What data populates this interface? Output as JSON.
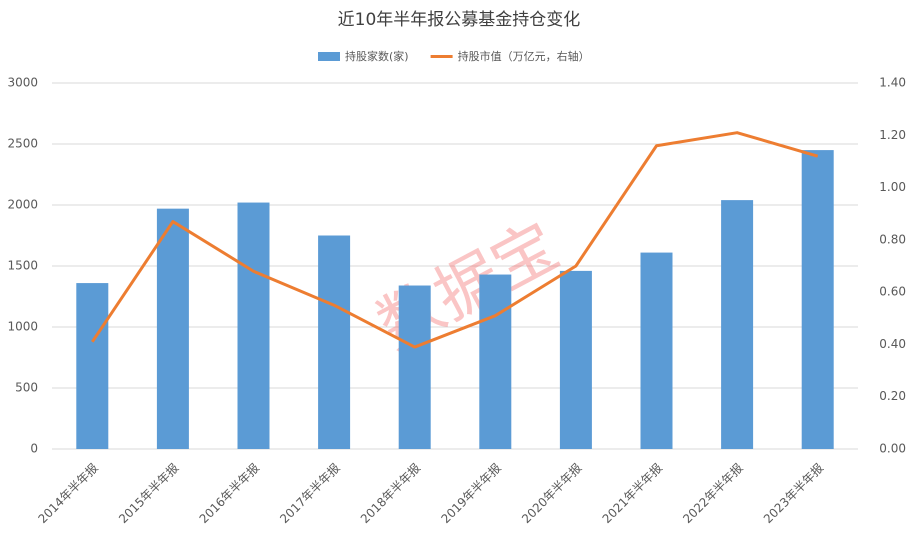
{
  "chart_data": {
    "type": "bar",
    "title": "近10年半年报公募基金持仓变化",
    "watermark": "数据宝",
    "categories": [
      "2014年半年报",
      "2015年半年报",
      "2016年半年报",
      "2017年半年报",
      "2018年半年报",
      "2019年半年报",
      "2020年半年报",
      "2021年半年报",
      "2022年半年报",
      "2023年半年报"
    ],
    "series": [
      {
        "name": "持股家数(家)",
        "type": "bar",
        "color": "#5b9bd5",
        "values": [
          1360,
          1970,
          2020,
          1750,
          1340,
          1430,
          1460,
          1610,
          2040,
          2450
        ]
      },
      {
        "name": "持股市值（万亿元，右轴）",
        "type": "line",
        "axis": "y2",
        "color": "#ed7d31",
        "values": [
          0.41,
          0.87,
          0.68,
          0.55,
          0.39,
          0.51,
          0.7,
          1.16,
          1.21,
          1.12
        ]
      }
    ],
    "ylim": [
      0,
      3000
    ],
    "yticks": [
      0,
      500,
      1000,
      1500,
      2000,
      2500,
      3000
    ],
    "y2lim": [
      0,
      1.4
    ],
    "y2ticks": [
      {
        "value": 0,
        "label": "0.00"
      },
      {
        "value": 0.2,
        "label": "0.20"
      },
      {
        "value": 0.4,
        "label": "0.40"
      },
      {
        "value": 0.6,
        "label": "0.60"
      },
      {
        "value": 0.8,
        "label": "0.80"
      },
      {
        "value": 1.0,
        "label": "1.00"
      },
      {
        "value": 1.2,
        "label": "1.20"
      },
      {
        "value": 1.4,
        "label": "1.40"
      }
    ],
    "grid": true
  }
}
